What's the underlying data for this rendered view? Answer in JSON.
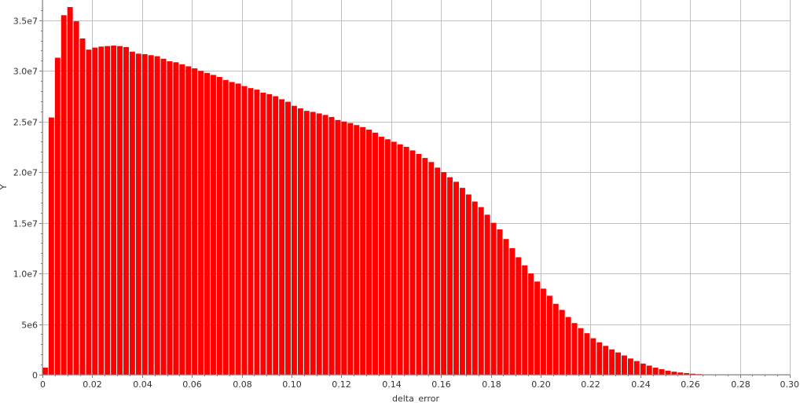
{
  "chart_data": {
    "type": "bar",
    "xlabel": "delta_error",
    "ylabel": "Y",
    "bar_color": "#ff0000",
    "grid": true,
    "grid_color": "#c0c0c0",
    "xlim": [
      0,
      0.3
    ],
    "ylim": [
      0,
      37000000
    ],
    "x_ticks": [
      0,
      0.02,
      0.04,
      0.06,
      0.08,
      0.1,
      0.12,
      0.14,
      0.16,
      0.18,
      0.2,
      0.22,
      0.24,
      0.26,
      0.28,
      0.3
    ],
    "x_tick_labels": [
      "0",
      "0.02",
      "0.04",
      "0.06",
      "0.08",
      "0.10",
      "0.12",
      "0.14",
      "0.16",
      "0.18",
      "0.20",
      "0.22",
      "0.24",
      "0.26",
      "0.28",
      "0.30"
    ],
    "y_ticks": [
      0,
      5000000,
      10000000,
      15000000,
      20000000,
      25000000,
      30000000,
      35000000
    ],
    "y_tick_labels": [
      "0",
      "5e6",
      "1.0e7",
      "1.5e7",
      "2.0e7",
      "2.5e7",
      "3.0e7",
      "3.5e7"
    ],
    "bin_width": 0.0025,
    "bins_start": [
      0,
      0.0025,
      0.005,
      0.0075,
      0.01,
      0.0125,
      0.015,
      0.0175,
      0.02,
      0.0225,
      0.025,
      0.0275,
      0.03,
      0.0325,
      0.035,
      0.0375,
      0.04,
      0.0425,
      0.045,
      0.0475,
      0.05,
      0.0525,
      0.055,
      0.0575,
      0.06,
      0.0625,
      0.065,
      0.0675,
      0.07,
      0.0725,
      0.075,
      0.0775,
      0.08,
      0.0825,
      0.085,
      0.0875,
      0.09,
      0.0925,
      0.095,
      0.0975,
      0.1,
      0.1025,
      0.105,
      0.1075,
      0.11,
      0.1125,
      0.115,
      0.1175,
      0.12,
      0.1225,
      0.125,
      0.1275,
      0.13,
      0.1325,
      0.135,
      0.1375,
      0.14,
      0.1425,
      0.145,
      0.1475,
      0.15,
      0.1525,
      0.155,
      0.1575,
      0.16,
      0.1625,
      0.165,
      0.1675,
      0.17,
      0.1725,
      0.175,
      0.1775,
      0.18,
      0.1825,
      0.185,
      0.1875,
      0.19,
      0.1925,
      0.195,
      0.1975,
      0.2,
      0.2025,
      0.205,
      0.2075,
      0.21,
      0.2125,
      0.215,
      0.2175,
      0.22,
      0.2225,
      0.225,
      0.2275,
      0.23,
      0.2325,
      0.235,
      0.2375,
      0.24,
      0.2425,
      0.245,
      0.2475,
      0.25,
      0.2525,
      0.255,
      0.2575,
      0.26,
      0.2625,
      0.265,
      0.2675,
      0.27,
      0.2725,
      0.275,
      0.2775,
      0.28,
      0.2825,
      0.285,
      0.2875,
      0.29,
      0.2925,
      0.295,
      0.2975
    ],
    "values": [
      700000,
      25400000,
      31300000,
      35500000,
      36300000,
      34900000,
      33200000,
      32100000,
      32300000,
      32400000,
      32450000,
      32500000,
      32450000,
      32350000,
      31900000,
      31700000,
      31650000,
      31550000,
      31450000,
      31200000,
      30950000,
      30850000,
      30650000,
      30450000,
      30250000,
      30000000,
      29800000,
      29600000,
      29400000,
      29100000,
      28900000,
      28750000,
      28500000,
      28300000,
      28150000,
      27850000,
      27700000,
      27500000,
      27200000,
      26950000,
      26550000,
      26300000,
      26050000,
      25950000,
      25800000,
      25650000,
      25450000,
      25150000,
      25000000,
      24850000,
      24650000,
      24450000,
      24200000,
      23900000,
      23500000,
      23250000,
      23000000,
      22750000,
      22500000,
      22150000,
      21800000,
      21400000,
      21000000,
      20450000,
      20000000,
      19500000,
      19050000,
      18450000,
      17800000,
      17100000,
      16550000,
      15800000,
      15000000,
      14350000,
      13400000,
      12500000,
      11600000,
      10800000,
      10000000,
      9200000,
      8500000,
      7800000,
      7000000,
      6400000,
      5700000,
      5100000,
      4600000,
      4100000,
      3600000,
      3200000,
      2850000,
      2500000,
      2200000,
      1900000,
      1600000,
      1350000,
      1100000,
      900000,
      700000,
      550000,
      400000,
      300000,
      220000,
      160000,
      100000,
      60000,
      40000,
      20000,
      10000,
      5000,
      2000,
      1000,
      500,
      200,
      100,
      50,
      20,
      10,
      5,
      2
    ]
  }
}
